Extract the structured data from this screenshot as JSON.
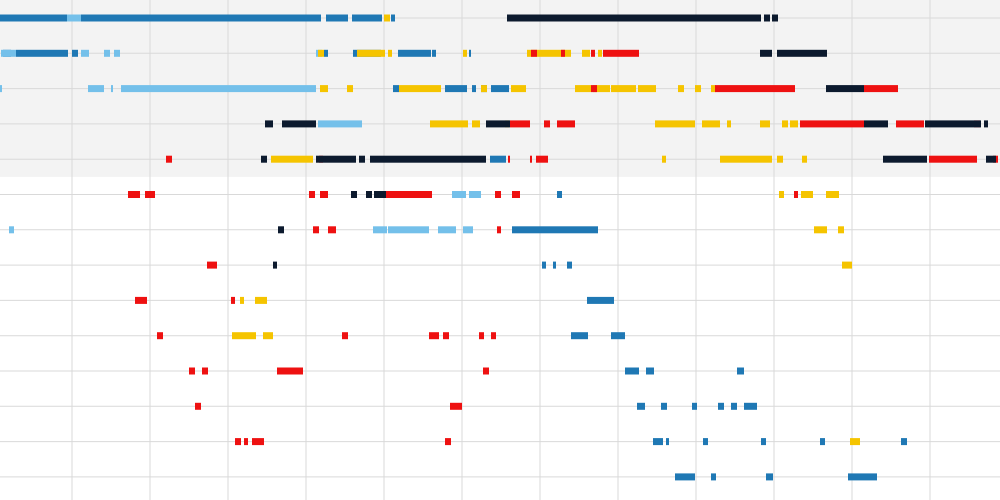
{
  "chart_data": {
    "type": "scatter",
    "title": "",
    "xlabel": "",
    "ylabel": "",
    "xlim": [
      0,
      1000
    ],
    "ylim": [
      -0.5,
      13.5
    ],
    "grid": true,
    "legend": "none",
    "colors": {
      "red": "#ee1111",
      "yellow": "#f5c400",
      "dark_blue": "#1f78b4",
      "light_blue": "#74c0ea",
      "navy": "#0c1a2e",
      "grid": "#d9d9d9",
      "band": "#f3f3f3"
    },
    "highlight_rows": [
      0,
      1,
      2,
      3,
      4
    ],
    "series": [
      {
        "color": "#1f78b4",
        "points": [
          [
            0,
            0,
            67
          ],
          [
            81,
            0,
            240
          ],
          [
            326,
            0,
            22
          ],
          [
            352,
            0,
            30
          ],
          [
            391,
            0,
            4
          ],
          [
            3,
            1,
            8
          ],
          [
            16,
            1,
            52
          ],
          [
            72,
            1,
            6
          ],
          [
            324,
            1,
            4
          ],
          [
            353,
            1,
            28
          ],
          [
            398,
            1,
            33
          ],
          [
            432,
            1,
            4
          ],
          [
            469,
            1,
            2
          ],
          [
            393,
            2,
            6
          ],
          [
            445,
            2,
            22
          ],
          [
            472,
            2,
            4
          ],
          [
            481,
            2,
            6
          ],
          [
            491,
            2,
            18
          ],
          [
            490,
            4,
            16
          ],
          [
            512,
            6,
            86
          ],
          [
            557,
            5,
            5
          ],
          [
            542,
            7,
            4
          ],
          [
            553,
            7,
            3
          ],
          [
            567,
            7,
            5
          ],
          [
            587,
            8,
            27
          ],
          [
            571,
            9,
            17
          ],
          [
            611,
            9,
            14
          ],
          [
            625,
            10,
            14
          ],
          [
            646,
            10,
            8
          ],
          [
            737,
            10,
            7
          ],
          [
            637,
            11,
            8
          ],
          [
            661,
            11,
            6
          ],
          [
            692,
            11,
            5
          ],
          [
            718,
            11,
            6
          ],
          [
            731,
            11,
            6
          ],
          [
            744,
            11,
            13
          ],
          [
            653,
            12,
            10
          ],
          [
            666,
            12,
            3
          ],
          [
            703,
            12,
            5
          ],
          [
            761,
            12,
            5
          ],
          [
            820,
            12,
            5
          ],
          [
            901,
            12,
            6
          ],
          [
            675,
            13,
            20
          ],
          [
            711,
            13,
            5
          ],
          [
            766,
            13,
            7
          ],
          [
            848,
            13,
            29
          ]
        ]
      },
      {
        "color": "#74c0ea",
        "points": [
          [
            67,
            0,
            14
          ],
          [
            1,
            1,
            15
          ],
          [
            81,
            1,
            8
          ],
          [
            104,
            1,
            6
          ],
          [
            114,
            1,
            6
          ],
          [
            316,
            1,
            6
          ],
          [
            0,
            2,
            2
          ],
          [
            88,
            2,
            16
          ],
          [
            111,
            2,
            2
          ],
          [
            121,
            2,
            195
          ],
          [
            318,
            3,
            44
          ],
          [
            9,
            6,
            5
          ],
          [
            373,
            6,
            14
          ],
          [
            388,
            6,
            41
          ],
          [
            438,
            6,
            18
          ],
          [
            463,
            6,
            10
          ],
          [
            383,
            5,
            4
          ],
          [
            452,
            5,
            14
          ],
          [
            469,
            5,
            12
          ]
        ]
      },
      {
        "color": "#f5c400",
        "points": [
          [
            384,
            0,
            6
          ],
          [
            318,
            1,
            6
          ],
          [
            357,
            1,
            28
          ],
          [
            388,
            1,
            4
          ],
          [
            463,
            1,
            4
          ],
          [
            527,
            1,
            44
          ],
          [
            582,
            1,
            8
          ],
          [
            598,
            1,
            4
          ],
          [
            320,
            2,
            8
          ],
          [
            347,
            2,
            6
          ],
          [
            399,
            2,
            42
          ],
          [
            481,
            2,
            6
          ],
          [
            511,
            2,
            15
          ],
          [
            575,
            2,
            16
          ],
          [
            593,
            2,
            17
          ],
          [
            611,
            2,
            25
          ],
          [
            638,
            2,
            18
          ],
          [
            678,
            2,
            6
          ],
          [
            695,
            2,
            6
          ],
          [
            711,
            2,
            5
          ],
          [
            430,
            3,
            38
          ],
          [
            472,
            3,
            8
          ],
          [
            505,
            3,
            4
          ],
          [
            655,
            3,
            40
          ],
          [
            702,
            3,
            18
          ],
          [
            727,
            3,
            4
          ],
          [
            760,
            3,
            10
          ],
          [
            782,
            3,
            6
          ],
          [
            790,
            3,
            8
          ],
          [
            271,
            4,
            42
          ],
          [
            662,
            4,
            4
          ],
          [
            720,
            4,
            52
          ],
          [
            777,
            4,
            6
          ],
          [
            802,
            4,
            5
          ],
          [
            779,
            5,
            5
          ],
          [
            801,
            5,
            12
          ],
          [
            826,
            5,
            13
          ],
          [
            814,
            6,
            13
          ],
          [
            838,
            6,
            6
          ],
          [
            842,
            7,
            10
          ],
          [
            240,
            8,
            4
          ],
          [
            255,
            8,
            12
          ],
          [
            232,
            9,
            24
          ],
          [
            263,
            9,
            10
          ],
          [
            850,
            12,
            10
          ]
        ]
      },
      {
        "color": "#ee1111",
        "points": [
          [
            531,
            1,
            6
          ],
          [
            561,
            1,
            4
          ],
          [
            591,
            1,
            4
          ],
          [
            603,
            1,
            36
          ],
          [
            591,
            2,
            6
          ],
          [
            715,
            2,
            80
          ],
          [
            864,
            2,
            34
          ],
          [
            510,
            3,
            20
          ],
          [
            544,
            3,
            6
          ],
          [
            557,
            3,
            18
          ],
          [
            800,
            3,
            64
          ],
          [
            896,
            3,
            28
          ],
          [
            974,
            3,
            6
          ],
          [
            166,
            4,
            6
          ],
          [
            319,
            4,
            4
          ],
          [
            508,
            4,
            2
          ],
          [
            530,
            4,
            2
          ],
          [
            536,
            4,
            12
          ],
          [
            929,
            4,
            48
          ],
          [
            993,
            4,
            5
          ],
          [
            128,
            5,
            12
          ],
          [
            145,
            5,
            10
          ],
          [
            309,
            5,
            6
          ],
          [
            320,
            5,
            8
          ],
          [
            386,
            5,
            46
          ],
          [
            495,
            5,
            6
          ],
          [
            512,
            5,
            8
          ],
          [
            794,
            5,
            4
          ],
          [
            313,
            6,
            6
          ],
          [
            328,
            6,
            8
          ],
          [
            497,
            6,
            4
          ],
          [
            207,
            7,
            10
          ],
          [
            135,
            8,
            12
          ],
          [
            231,
            8,
            4
          ],
          [
            157,
            9,
            6
          ],
          [
            342,
            9,
            6
          ],
          [
            429,
            9,
            10
          ],
          [
            443,
            9,
            6
          ],
          [
            479,
            9,
            5
          ],
          [
            491,
            9,
            5
          ],
          [
            189,
            10,
            6
          ],
          [
            202,
            10,
            6
          ],
          [
            277,
            10,
            20
          ],
          [
            297,
            10,
            6
          ],
          [
            483,
            10,
            6
          ],
          [
            195,
            11,
            6
          ],
          [
            450,
            11,
            12
          ],
          [
            235,
            12,
            6
          ],
          [
            244,
            12,
            4
          ],
          [
            252,
            12,
            12
          ],
          [
            445,
            12,
            6
          ]
        ]
      },
      {
        "color": "#0c1a2e",
        "points": [
          [
            507,
            0,
            254
          ],
          [
            764,
            0,
            6
          ],
          [
            772,
            0,
            6
          ],
          [
            760,
            1,
            12
          ],
          [
            777,
            1,
            50
          ],
          [
            826,
            2,
            38
          ],
          [
            265,
            3,
            8
          ],
          [
            282,
            3,
            34
          ],
          [
            486,
            3,
            24
          ],
          [
            864,
            3,
            24
          ],
          [
            925,
            3,
            56
          ],
          [
            984,
            3,
            4
          ],
          [
            261,
            4,
            6
          ],
          [
            316,
            4,
            40
          ],
          [
            359,
            4,
            6
          ],
          [
            370,
            4,
            116
          ],
          [
            883,
            4,
            44
          ],
          [
            986,
            4,
            10
          ],
          [
            351,
            5,
            6
          ],
          [
            366,
            5,
            6
          ],
          [
            374,
            5,
            12
          ],
          [
            278,
            6,
            6
          ],
          [
            273,
            7,
            4
          ]
        ]
      }
    ]
  }
}
